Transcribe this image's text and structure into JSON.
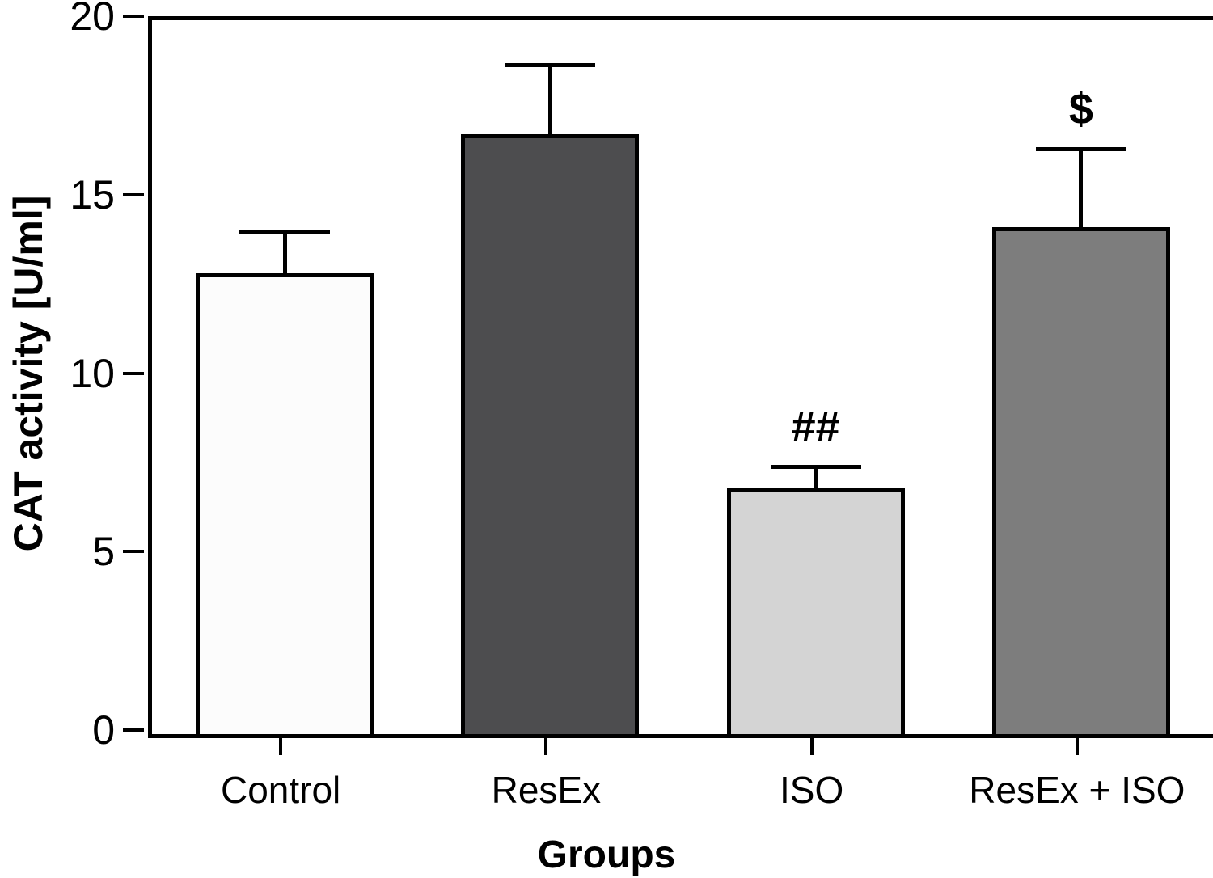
{
  "figure": {
    "background": "#ffffff",
    "axis_color": "#000000"
  },
  "chart_data": {
    "type": "bar",
    "title": "",
    "xlabel": "Groups",
    "ylabel": "CAT activity [U/ml]",
    "categories": [
      "Control",
      "ResEx",
      "ISO",
      "ResEx + ISO"
    ],
    "values": [
      12.9,
      16.8,
      6.9,
      14.2
    ],
    "errors": [
      1.2,
      2.0,
      0.65,
      2.25
    ],
    "bar_colors": [
      "#fcfcfc",
      "#4d4d4f",
      "#d4d4d4",
      "#7d7d7d"
    ],
    "annotations": [
      {
        "index": 2,
        "text": "##"
      },
      {
        "index": 3,
        "text": "$"
      }
    ],
    "ylim": [
      0,
      20
    ],
    "yticks": [
      0,
      5,
      10,
      15,
      20
    ],
    "grid": false,
    "legend": null
  }
}
